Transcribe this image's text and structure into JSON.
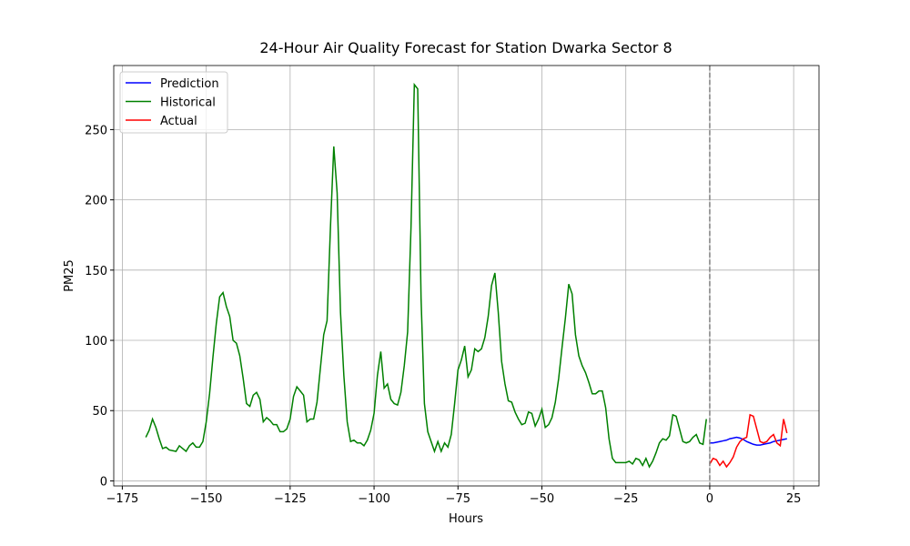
{
  "chart_data": {
    "type": "line",
    "title": "24-Hour Air Quality Forecast for Station Dwarka Sector 8",
    "xlabel": "Hours",
    "ylabel": "PM25",
    "xlim": [
      -177.55,
      32.55
    ],
    "ylim": [
      -3.6,
      295.6
    ],
    "xticks": [
      {
        "value": -175,
        "label": "−175"
      },
      {
        "value": -150,
        "label": "−150"
      },
      {
        "value": -125,
        "label": "−125"
      },
      {
        "value": -100,
        "label": "−100"
      },
      {
        "value": -75,
        "label": "−75"
      },
      {
        "value": -50,
        "label": "−50"
      },
      {
        "value": -25,
        "label": "−25"
      },
      0,
      25
    ],
    "yticks": [
      0,
      50,
      100,
      150,
      200,
      250
    ],
    "grid": true,
    "legend": "upper left",
    "vline_x": 0,
    "vline_color": "#808080",
    "series": [
      {
        "name": "Prediction",
        "color": "#0000ff",
        "x": [
          0,
          1,
          2,
          3,
          4,
          5,
          6,
          7,
          8,
          9,
          10,
          11,
          12,
          13,
          14,
          15,
          16,
          17,
          18,
          19,
          20,
          21,
          22,
          23
        ],
        "values": [
          27,
          27,
          27.5,
          28,
          28.5,
          29,
          30,
          30.5,
          31,
          30.5,
          29.5,
          28,
          27,
          26,
          25.5,
          25.5,
          26,
          26.5,
          27,
          28,
          28.5,
          29,
          29.5,
          30
        ]
      },
      {
        "name": "Historical",
        "color": "#008000",
        "x": [
          -168,
          -167,
          -166,
          -165,
          -164,
          -163,
          -162,
          -161,
          -160,
          -159,
          -158,
          -157,
          -156,
          -155,
          -154,
          -153,
          -152,
          -151,
          -150,
          -149,
          -148,
          -147,
          -146,
          -145,
          -144,
          -143,
          -142,
          -141,
          -140,
          -139,
          -138,
          -137,
          -136,
          -135,
          -134,
          -133,
          -132,
          -131,
          -130,
          -129,
          -128,
          -127,
          -126,
          -125,
          -124,
          -123,
          -122,
          -121,
          -120,
          -119,
          -118,
          -117,
          -116,
          -115,
          -114,
          -113,
          -112,
          -111,
          -110,
          -109,
          -108,
          -107,
          -106,
          -105,
          -104,
          -103,
          -102,
          -101,
          -100,
          -99,
          -98,
          -97,
          -96,
          -95,
          -94,
          -93,
          -92,
          -91,
          -90,
          -89,
          -88,
          -87,
          -86,
          -85,
          -84,
          -83,
          -82,
          -81,
          -80,
          -79,
          -78,
          -77,
          -76,
          -75,
          -74,
          -73,
          -72,
          -71,
          -70,
          -69,
          -68,
          -67,
          -66,
          -65,
          -64,
          -63,
          -62,
          -61,
          -60,
          -59,
          -58,
          -57,
          -56,
          -55,
          -54,
          -53,
          -52,
          -51,
          -50,
          -49,
          -48,
          -47,
          -46,
          -45,
          -44,
          -43,
          -42,
          -41,
          -40,
          -39,
          -38,
          -37,
          -36,
          -35,
          -34,
          -33,
          -32,
          -31,
          -30,
          -29,
          -28,
          -27,
          -26,
          -25,
          -24,
          -23,
          -22,
          -21,
          -20,
          -19,
          -18,
          -17,
          -16,
          -15,
          -14,
          -13,
          -12,
          -11,
          -10,
          -9,
          -8,
          -7,
          -6,
          -5,
          -4,
          -3,
          -2,
          -1
        ],
        "values": [
          31,
          36,
          44,
          38,
          30,
          23,
          24,
          22,
          21.5,
          21,
          25,
          23,
          21,
          25,
          27,
          24,
          24,
          28,
          42,
          62,
          88,
          112,
          131,
          134,
          124,
          117,
          100,
          98,
          89,
          73,
          55,
          53,
          61,
          63,
          58,
          42,
          45,
          43,
          40,
          40,
          35,
          35,
          37,
          44,
          60,
          67,
          64,
          61,
          42,
          44,
          44,
          56,
          80,
          104,
          114,
          180,
          238,
          205,
          120,
          75,
          42,
          28,
          29,
          27,
          27,
          25,
          29,
          36,
          48,
          75,
          92,
          66,
          69,
          58,
          55,
          54,
          63,
          82,
          106,
          180,
          282,
          279,
          130,
          55,
          35,
          28,
          21,
          28,
          21,
          27,
          24,
          33,
          55,
          79,
          86,
          96,
          74,
          79,
          94,
          92,
          94,
          102,
          117,
          139,
          148,
          120,
          85,
          69,
          57,
          56,
          49,
          44,
          40,
          41,
          49,
          48,
          39,
          44,
          51,
          38,
          40,
          45,
          56,
          73,
          95,
          116,
          140,
          133,
          104,
          89,
          82,
          77,
          70,
          62,
          62,
          64,
          64,
          52,
          30,
          16,
          13,
          13,
          13,
          13,
          14,
          12,
          16,
          15,
          11,
          16,
          10,
          14,
          20,
          27,
          30,
          29,
          32,
          47,
          46,
          37,
          28,
          27,
          28,
          31,
          33,
          27,
          26,
          44
        ]
      },
      {
        "name": "Actual",
        "color": "#ff0000",
        "x": [
          0,
          1,
          2,
          3,
          4,
          5,
          6,
          7,
          8,
          9,
          10,
          11,
          12,
          13,
          14,
          15,
          16,
          17,
          18,
          19,
          20,
          21,
          22,
          23
        ],
        "values": [
          12,
          16,
          15,
          11,
          14,
          10,
          13,
          17,
          24,
          28,
          30,
          31,
          47,
          46,
          37,
          28,
          27,
          28,
          31,
          33,
          27,
          25,
          44,
          34
        ]
      }
    ]
  }
}
